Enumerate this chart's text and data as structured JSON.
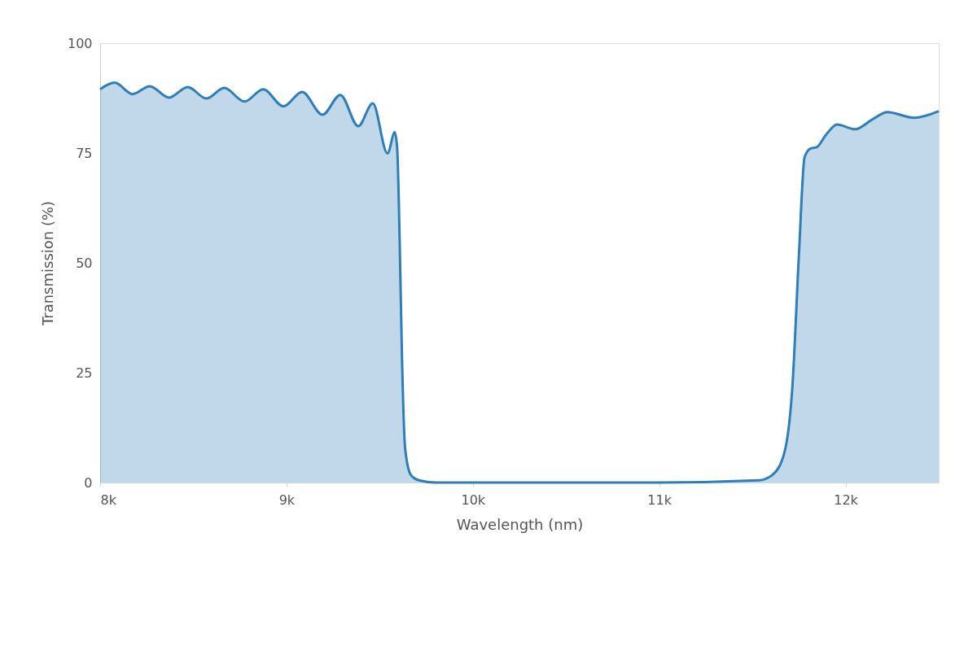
{
  "chart_data": {
    "type": "area",
    "xlabel": "Wavelength (nm)",
    "ylabel": "Transmission (%)",
    "xlim": [
      8000,
      12500
    ],
    "ylim": [
      0,
      100
    ],
    "xticks": [
      {
        "value": 8000,
        "label": "8k"
      },
      {
        "value": 9000,
        "label": "9k"
      },
      {
        "value": 10000,
        "label": "10k"
      },
      {
        "value": 11000,
        "label": "11k"
      },
      {
        "value": 12000,
        "label": "12k"
      }
    ],
    "yticks": [
      0,
      25,
      50,
      75,
      100
    ],
    "grid": false,
    "series": [
      {
        "color": "#2e7eb8",
        "x": [
          8000,
          8078,
          8174,
          8266,
          8370,
          8470,
          8570,
          8666,
          8775,
          8875,
          8984,
          9084,
          9193,
          9289,
          9385,
          9463,
          9542,
          9581,
          9594,
          9607,
          9620,
          9637,
          9668,
          9711,
          9800,
          10500,
          11000,
          11532,
          11606,
          11671,
          11715,
          11750,
          11780,
          11811,
          11845,
          11898,
          11954,
          12050,
          12150,
          12224,
          12368,
          12500
        ],
        "values": [
          89.5,
          91,
          88.4,
          90.2,
          87.6,
          90,
          87.4,
          89.8,
          86.7,
          89.5,
          85.6,
          88.9,
          83.7,
          88.2,
          81.1,
          86.3,
          74.9,
          79.7,
          76,
          55.6,
          27.9,
          7.6,
          1.7,
          0.5,
          0,
          0,
          0,
          0.5,
          1.7,
          6.7,
          22,
          52,
          74,
          76,
          76.3,
          79.3,
          81.5,
          80.4,
          82.8,
          84.3,
          83,
          84.5
        ]
      }
    ]
  }
}
